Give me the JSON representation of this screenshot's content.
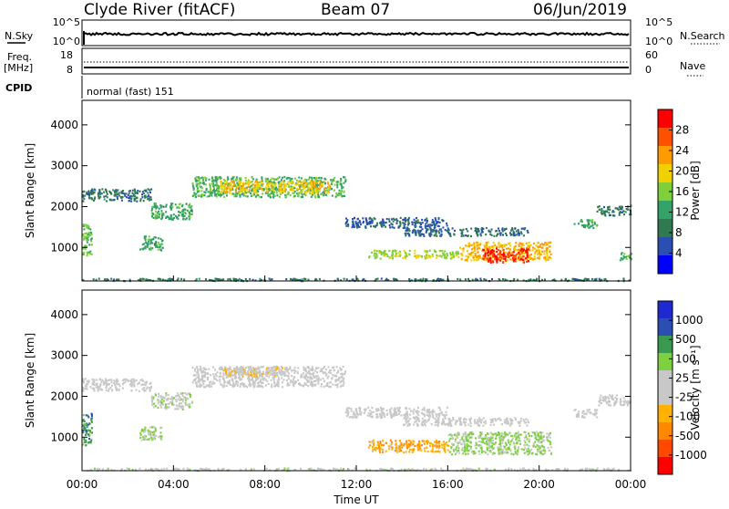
{
  "header": {
    "station": "Clyde River (fitACF)",
    "beam": "Beam 07",
    "date": "06/Jun/2019"
  },
  "strip_panels": {
    "nsky": {
      "label": "N.Sky",
      "ticks": [
        "10^5",
        "10^0"
      ],
      "right_ticks": [
        "10^5",
        "10^0"
      ],
      "right_label": "N.Search"
    },
    "freq": {
      "label_line1": "Freq.",
      "label_line2": "[MHz]",
      "ticks": [
        "18",
        "8"
      ],
      "right_ticks": [
        "60",
        "0"
      ],
      "right_label": "Nave"
    },
    "cpid": {
      "label": "CPID",
      "value": "normal (fast) 151"
    }
  },
  "colors": {
    "power_scale": [
      "#0000ff",
      "#2a4fb0",
      "#2f7a4f",
      "#33a36a",
      "#7fcf3a",
      "#f0d000",
      "#ff9a00",
      "#ff5000",
      "#ff0000"
    ],
    "velocity_scale": [
      "#ff0000",
      "#ff4800",
      "#ff8800",
      "#ffb000",
      "#c8c8c8",
      "#c8c8c8",
      "#7fd040",
      "#3a9a50",
      "#2a4fb0",
      "#1e2ad0"
    ]
  },
  "chart_data": [
    {
      "type": "heatmap",
      "name": "power",
      "ylabel": "Slant Range [km]",
      "yticks": [
        1000,
        2000,
        3000,
        4000
      ],
      "ylim": [
        180,
        4600
      ],
      "xlim": [
        0,
        24
      ],
      "colorbar": {
        "label": "Power [dB]",
        "ticks": [
          "4",
          "8",
          "12",
          "16",
          "20",
          "24",
          "28"
        ],
        "range": [
          0,
          30
        ]
      },
      "regions": [
        {
          "x": [
            0.0,
            0.4
          ],
          "y": [
            800,
            1600
          ],
          "value": 14
        },
        {
          "x": [
            0.0,
            3.0
          ],
          "y": [
            2150,
            2450
          ],
          "value": 8
        },
        {
          "x": [
            3.0,
            4.8
          ],
          "y": [
            1700,
            2100
          ],
          "value": 12
        },
        {
          "x": [
            4.8,
            11.5
          ],
          "y": [
            2250,
            2750
          ],
          "value": 13
        },
        {
          "x": [
            6.0,
            10.8
          ],
          "y": [
            2350,
            2650
          ],
          "value": 19
        },
        {
          "x": [
            11.5,
            16.0
          ],
          "y": [
            1500,
            1750
          ],
          "value": 6
        },
        {
          "x": [
            14.0,
            19.5
          ],
          "y": [
            1300,
            1500
          ],
          "value": 7
        },
        {
          "x": [
            0.0,
            24.0
          ],
          "y": [
            200,
            260
          ],
          "value": 8
        },
        {
          "x": [
            12.5,
            16.5
          ],
          "y": [
            750,
            950
          ],
          "value": 16
        },
        {
          "x": [
            16.5,
            20.5
          ],
          "y": [
            700,
            1150
          ],
          "value": 20
        },
        {
          "x": [
            17.5,
            19.5
          ],
          "y": [
            650,
            1000
          ],
          "value": 27
        },
        {
          "x": [
            21.5,
            22.5
          ],
          "y": [
            1500,
            1700
          ],
          "value": 12
        },
        {
          "x": [
            22.5,
            24.0
          ],
          "y": [
            1800,
            2050
          ],
          "value": 8
        },
        {
          "x": [
            23.5,
            24.0
          ],
          "y": [
            700,
            900
          ],
          "value": 12
        },
        {
          "x": [
            2.5,
            3.5
          ],
          "y": [
            950,
            1300
          ],
          "value": 12
        }
      ]
    },
    {
      "type": "heatmap",
      "name": "velocity",
      "ylabel": "Slant Range [km]",
      "yticks": [
        1000,
        2000,
        3000,
        4000
      ],
      "ylim": [
        180,
        4600
      ],
      "xlim": [
        0,
        24
      ],
      "xticks": [
        "00:00",
        "04:00",
        "08:00",
        "12:00",
        "16:00",
        "20:00",
        "00:00"
      ],
      "xlabel": "Time UT",
      "colorbar": {
        "label": "Velocity [m s⁻¹]",
        "ticks": [
          "-1000",
          "-500",
          "-100",
          "-25",
          "25",
          "100",
          "500",
          "1000"
        ],
        "range": [
          -1200,
          1200
        ]
      },
      "regions": [
        {
          "x": [
            0.0,
            0.4
          ],
          "y": [
            800,
            1600
          ],
          "value": 600
        },
        {
          "x": [
            0.0,
            3.0
          ],
          "y": [
            2150,
            2450
          ],
          "value": 0
        },
        {
          "x": [
            3.0,
            4.8
          ],
          "y": [
            1700,
            2100
          ],
          "value": 150
        },
        {
          "x": [
            4.8,
            11.5
          ],
          "y": [
            2250,
            2750
          ],
          "value": 0
        },
        {
          "x": [
            6.0,
            9.0
          ],
          "y": [
            2500,
            2750
          ],
          "value": -150
        },
        {
          "x": [
            11.5,
            16.0
          ],
          "y": [
            1500,
            1750
          ],
          "value": 0
        },
        {
          "x": [
            14.0,
            19.5
          ],
          "y": [
            1300,
            1500
          ],
          "value": 0
        },
        {
          "x": [
            12.5,
            16.0
          ],
          "y": [
            650,
            950
          ],
          "value": -400
        },
        {
          "x": [
            16.0,
            20.5
          ],
          "y": [
            600,
            1150
          ],
          "value": 300
        },
        {
          "x": [
            21.5,
            22.5
          ],
          "y": [
            1500,
            1700
          ],
          "value": 0
        },
        {
          "x": [
            22.5,
            24.0
          ],
          "y": [
            1800,
            2050
          ],
          "value": 0
        },
        {
          "x": [
            2.5,
            3.5
          ],
          "y": [
            950,
            1300
          ],
          "value": 300
        },
        {
          "x": [
            0.0,
            24.0
          ],
          "y": [
            200,
            260
          ],
          "value": 120
        }
      ]
    }
  ]
}
